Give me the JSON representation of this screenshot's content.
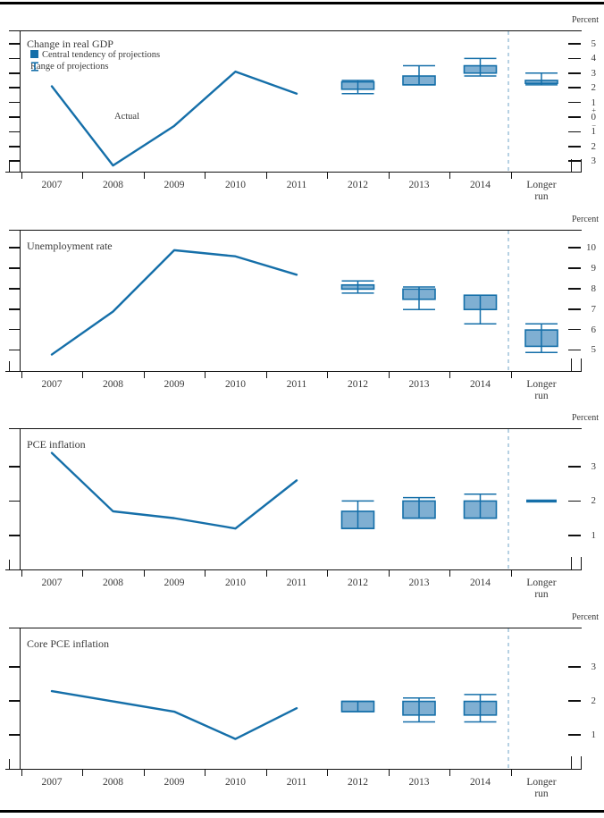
{
  "page": {
    "unit_label": "Percent"
  },
  "legend": {
    "central_tendency": "Central tendency of projections",
    "range": "Range of projections",
    "actual": "Actual"
  },
  "colors": {
    "line": "#156FA9",
    "box_fill": "#7FAFD2",
    "box_border": "#156FA9",
    "divider_dashed": "#8FB8D4",
    "frame": "#111111",
    "text": "#3A3A3A"
  },
  "x_axis": {
    "years": [
      "2007",
      "2008",
      "2009",
      "2010",
      "2011",
      "2012",
      "2013",
      "2014"
    ],
    "longer_run": [
      "Longer",
      "run"
    ]
  },
  "chart_data": [
    {
      "type": "line+boxwhisker",
      "title": "Change in real GDP",
      "unit": "Percent",
      "ylim": [
        -3.78,
        5.91
      ],
      "y_ticks": [
        {
          "label": "5",
          "value": 5,
          "dash": true
        },
        {
          "label": "4",
          "value": 4,
          "dash": true
        },
        {
          "label": "3",
          "value": 3,
          "dash": true
        },
        {
          "label": "2",
          "value": 2,
          "dash": true
        },
        {
          "label": "1",
          "value": 1,
          "dash": true
        },
        {
          "label": "+",
          "value": 0.5,
          "dash": false
        },
        {
          "label": "0",
          "value": 0,
          "dash": true
        },
        {
          "label": "−",
          "value": -0.55,
          "dash": false
        },
        {
          "label": "1",
          "value": -1,
          "dash": true
        },
        {
          "label": "2",
          "value": -2,
          "dash": true
        },
        {
          "label": "3",
          "value": -3,
          "dash": true
        }
      ],
      "actual": {
        "x": [
          "2007",
          "2008",
          "2009",
          "2010",
          "2011"
        ],
        "values": [
          2.1,
          -3.3,
          -0.6,
          3.1,
          1.6
        ]
      },
      "projections": [
        {
          "period": "2012",
          "central_tendency": [
            1.9,
            2.4
          ],
          "range": [
            1.6,
            2.5
          ]
        },
        {
          "period": "2013",
          "central_tendency": [
            2.2,
            2.8
          ],
          "range": [
            2.2,
            3.5
          ]
        },
        {
          "period": "2014",
          "central_tendency": [
            3.0,
            3.5
          ],
          "range": [
            2.8,
            4.0
          ]
        },
        {
          "period": "Longer run",
          "central_tendency": [
            2.3,
            2.5
          ],
          "range": [
            2.2,
            3.0
          ]
        }
      ]
    },
    {
      "type": "line+boxwhisker",
      "title": "Unemployment rate",
      "unit": "Percent",
      "ylim": [
        3.95,
        10.9
      ],
      "y_ticks": [
        {
          "label": "10",
          "value": 10,
          "dash": true
        },
        {
          "label": "9",
          "value": 9,
          "dash": true
        },
        {
          "label": "8",
          "value": 8,
          "dash": true
        },
        {
          "label": "7",
          "value": 7,
          "dash": true
        },
        {
          "label": "6",
          "value": 6,
          "dash": true
        },
        {
          "label": "5",
          "value": 5,
          "dash": true
        }
      ],
      "actual": {
        "x": [
          "2007",
          "2008",
          "2009",
          "2010",
          "2011"
        ],
        "values": [
          4.8,
          6.9,
          9.9,
          9.6,
          8.7
        ]
      },
      "projections": [
        {
          "period": "2012",
          "central_tendency": [
            8.0,
            8.2
          ],
          "range": [
            7.8,
            8.4
          ]
        },
        {
          "period": "2013",
          "central_tendency": [
            7.5,
            8.0
          ],
          "range": [
            7.0,
            8.1
          ]
        },
        {
          "period": "2014",
          "central_tendency": [
            7.0,
            7.7
          ],
          "range": [
            6.3,
            7.7
          ]
        },
        {
          "period": "Longer run",
          "central_tendency": [
            5.2,
            6.0
          ],
          "range": [
            4.9,
            6.3
          ]
        }
      ]
    },
    {
      "type": "line+boxwhisker",
      "title": "PCE inflation",
      "unit": "Percent",
      "ylim": [
        -0.02,
        4.12
      ],
      "y_ticks": [
        {
          "label": "3",
          "value": 3,
          "dash": true
        },
        {
          "label": "2",
          "value": 2,
          "dash": true
        },
        {
          "label": "1",
          "value": 1,
          "dash": true
        }
      ],
      "actual": {
        "x": [
          "2007",
          "2008",
          "2009",
          "2010",
          "2011"
        ],
        "values": [
          3.4,
          1.7,
          1.5,
          1.2,
          2.6
        ]
      },
      "projections": [
        {
          "period": "2012",
          "central_tendency": [
            1.2,
            1.7
          ],
          "range": [
            1.2,
            2.0
          ]
        },
        {
          "period": "2013",
          "central_tendency": [
            1.5,
            2.0
          ],
          "range": [
            1.5,
            2.1
          ]
        },
        {
          "period": "2014",
          "central_tendency": [
            1.5,
            2.0
          ],
          "range": [
            1.5,
            2.2
          ]
        },
        {
          "period": "Longer run",
          "value": 2.0
        }
      ]
    },
    {
      "type": "line+boxwhisker",
      "title": "Core PCE inflation",
      "unit": "Percent",
      "ylim": [
        0.0,
        4.16
      ],
      "y_ticks": [
        {
          "label": "3",
          "value": 3,
          "dash": true
        },
        {
          "label": "2",
          "value": 2,
          "dash": true
        },
        {
          "label": "1",
          "value": 1,
          "dash": true
        }
      ],
      "actual": {
        "x": [
          "2007",
          "2008",
          "2009",
          "2010",
          "2011"
        ],
        "values": [
          2.3,
          2.0,
          1.7,
          0.9,
          1.8
        ]
      },
      "projections": [
        {
          "period": "2012",
          "central_tendency": [
            1.7,
            2.0
          ],
          "range": [
            1.7,
            2.0
          ]
        },
        {
          "period": "2013",
          "central_tendency": [
            1.6,
            2.0
          ],
          "range": [
            1.4,
            2.1
          ]
        },
        {
          "period": "2014",
          "central_tendency": [
            1.6,
            2.0
          ],
          "range": [
            1.4,
            2.2
          ]
        }
      ]
    }
  ]
}
